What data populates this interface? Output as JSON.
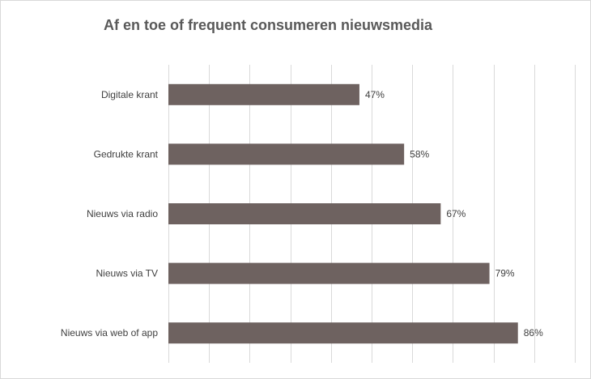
{
  "chart_data": {
    "type": "bar",
    "orientation": "horizontal",
    "title": "Af en toe of frequent consumeren nieuwsmedia",
    "categories": [
      "Digitale krant",
      "Gedrukte krant",
      "Nieuws via radio",
      "Nieuws via TV",
      "Nieuws via web of app"
    ],
    "values": [
      47,
      58,
      67,
      79,
      86
    ],
    "value_labels": [
      "47%",
      "58%",
      "67%",
      "79%",
      "86%"
    ],
    "xlim": [
      0,
      100
    ],
    "grid": true,
    "legend": "none",
    "colors": {
      "bar": "#6e6260",
      "grid": "#d9d9d9",
      "text": "#404040",
      "title": "#595959"
    }
  }
}
